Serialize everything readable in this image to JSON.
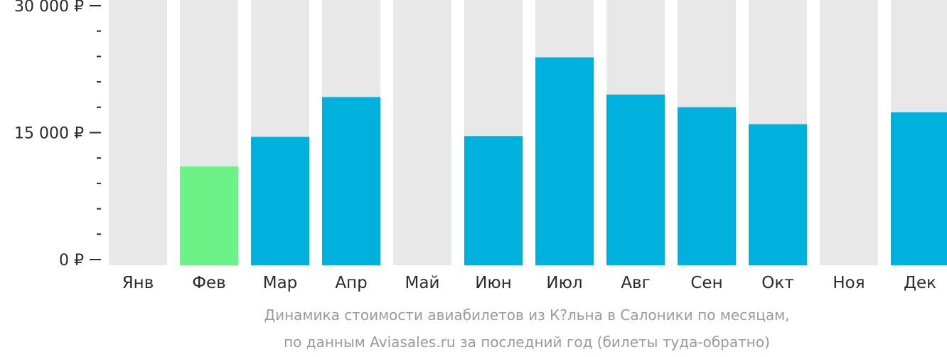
{
  "chart_data": {
    "type": "bar",
    "categories": [
      "Янв",
      "Фев",
      "Мар",
      "Апр",
      "Май",
      "Июн",
      "Июл",
      "Авг",
      "Сен",
      "Окт",
      "Ноя",
      "Дек"
    ],
    "values": [
      null,
      11000,
      14500,
      19200,
      null,
      14600,
      23900,
      19500,
      18000,
      16000,
      null,
      17400
    ],
    "ylim": [
      0,
      30000
    ],
    "yticks": [
      {
        "value": 30000,
        "label": "30 000 ₽"
      },
      {
        "value": 15000,
        "label": "15 000 ₽"
      },
      {
        "value": 0,
        "label": "0 ₽"
      }
    ],
    "minor_tick_step": 3000,
    "grid": false,
    "legend": "none",
    "highlight_index": 1,
    "colors": {
      "bar": "#00b0dd",
      "highlight": "#6cf286",
      "background_column": "#e8e8e8",
      "axis": "#2b2b2b",
      "caption": "#9a9a9a"
    }
  },
  "caption": {
    "line1": "Динамика стоимости авиабилетов из К?льна в Салоники по месяцам,",
    "line2": "по данным Aviasales.ru за последний год (билеты туда-обратно)"
  }
}
